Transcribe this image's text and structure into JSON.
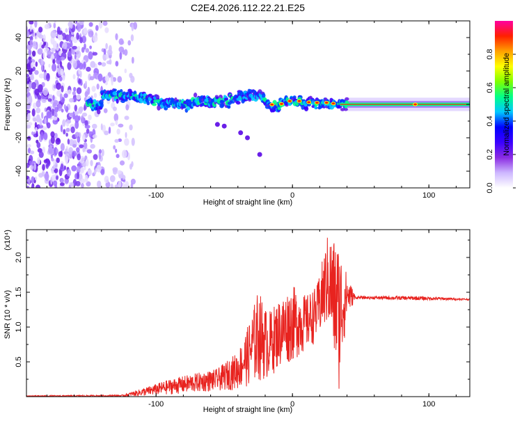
{
  "figure_title": "C2E4.2026.112.22.21.E25",
  "chart_data": [
    {
      "type": "heatmap",
      "title": "C2E4.2026.112.22.21.E25",
      "xlabel": "Height of straight line (km)",
      "ylabel": "Frequency (Hz)",
      "xlim": [
        -195,
        130
      ],
      "ylim": [
        -50,
        50
      ],
      "xticks": [
        -100,
        0,
        100
      ],
      "yticks": [
        -40,
        -20,
        0,
        20,
        40
      ],
      "xtick_labels": [
        "-100",
        "0",
        "100"
      ],
      "ytick_labels": [
        "-40",
        "-20",
        "0",
        "20",
        "40"
      ],
      "colorbar": {
        "label": "Normalized spectral amplitude",
        "range": [
          0,
          1
        ],
        "ticks": [
          0.0,
          0.2,
          0.4,
          0.6,
          0.8
        ],
        "tick_labels": [
          "0.0",
          "0.2",
          "0.4",
          "0.6",
          "0.8"
        ],
        "colors": [
          "#ffffff",
          "#cdb7ff",
          "#8a2be2",
          "#3a00ff",
          "#0000ff",
          "#00c8ff",
          "#00ff88",
          "#7fff00",
          "#ffff00",
          "#ffa000",
          "#ff2000",
          "#ff00a0"
        ]
      },
      "features": {
        "noise_region_x": [
          -195,
          -115
        ],
        "ridge_center_hz": 0,
        "ridge_points": [
          {
            "x": -140,
            "y": 6
          },
          {
            "x": -120,
            "y": 5
          },
          {
            "x": -110,
            "y": 4
          },
          {
            "x": -95,
            "y": 1
          },
          {
            "x": -80,
            "y": 0
          },
          {
            "x": -70,
            "y": 2
          },
          {
            "x": -60,
            "y": 1
          },
          {
            "x": -50,
            "y": 2
          },
          {
            "x": -40,
            "y": 4
          },
          {
            "x": -30,
            "y": 6
          },
          {
            "x": -20,
            "y": 3
          },
          {
            "x": -12,
            "y": -2
          },
          {
            "x": -5,
            "y": 2
          },
          {
            "x": 5,
            "y": 2
          },
          {
            "x": 15,
            "y": 1
          },
          {
            "x": 25,
            "y": 1
          },
          {
            "x": 35,
            "y": 0
          },
          {
            "x": 50,
            "y": 0
          },
          {
            "x": 90,
            "y": 0
          },
          {
            "x": 130,
            "y": 0
          }
        ],
        "side_blobs": [
          {
            "x": -55,
            "y": -12
          },
          {
            "x": -50,
            "y": -13
          },
          {
            "x": -38,
            "y": -17
          },
          {
            "x": -33,
            "y": -20
          },
          {
            "x": -24,
            "y": -30
          }
        ]
      }
    },
    {
      "type": "line",
      "title": "",
      "xlabel": "Height of straight line (km)",
      "ylabel": "SNR (10 * v/v)",
      "y_scale_note": "(x10⁴)",
      "xlim": [
        -195,
        130
      ],
      "ylim": [
        0,
        24000
      ],
      "xticks": [
        -100,
        0,
        100
      ],
      "yticks": [
        5000,
        10000,
        15000,
        20000
      ],
      "xtick_labels": [
        "-100",
        "0",
        "100"
      ],
      "ytick_labels": [
        "0.5",
        "1.0",
        "1.5",
        "2.0"
      ],
      "series": [
        {
          "name": "SNR",
          "color": "#e8231f",
          "envelope": [
            {
              "x": -195,
              "lo": 0,
              "hi": 150
            },
            {
              "x": -125,
              "lo": 0,
              "hi": 250
            },
            {
              "x": -105,
              "lo": 100,
              "hi": 1500
            },
            {
              "x": -90,
              "lo": 300,
              "hi": 2500
            },
            {
              "x": -75,
              "lo": 500,
              "hi": 3200
            },
            {
              "x": -55,
              "lo": 800,
              "hi": 4000
            },
            {
              "x": -40,
              "lo": 1000,
              "hi": 6500
            },
            {
              "x": -32,
              "lo": 1500,
              "hi": 10500
            },
            {
              "x": -25,
              "lo": 2000,
              "hi": 15500
            },
            {
              "x": -18,
              "lo": 2500,
              "hi": 12000
            },
            {
              "x": -10,
              "lo": 4000,
              "hi": 14000
            },
            {
              "x": 0,
              "lo": 5000,
              "hi": 16000
            },
            {
              "x": 10,
              "lo": 6500,
              "hi": 14500
            },
            {
              "x": 18,
              "lo": 8000,
              "hi": 16000
            },
            {
              "x": 26,
              "lo": 10000,
              "hi": 23500
            },
            {
              "x": 34,
              "lo": 500,
              "hi": 22500
            },
            {
              "x": 40,
              "lo": 11500,
              "hi": 17500
            },
            {
              "x": 46,
              "lo": 13800,
              "hi": 14600
            },
            {
              "x": 90,
              "lo": 13500,
              "hi": 14700
            },
            {
              "x": 130,
              "lo": 13700,
              "hi": 14200
            }
          ]
        }
      ]
    }
  ]
}
